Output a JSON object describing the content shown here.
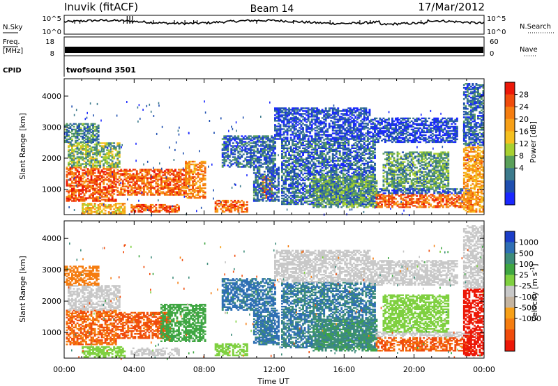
{
  "header": {
    "station": "Inuvik (fitACF)",
    "beam": "Beam 14",
    "date": "17/Mar/2012"
  },
  "panels": {
    "nsky": {
      "left_label": "N.Sky",
      "right_label": "N.Search",
      "left_ticks": [
        "10^5",
        "10^0"
      ],
      "right_ticks": [
        "10^5",
        "10^0"
      ]
    },
    "freq": {
      "left_label_1": "Freq.",
      "left_label_2": "[MHz]",
      "right_label": "Nave",
      "left_ticks": [
        "18",
        "8"
      ],
      "right_ticks": [
        "60",
        "0"
      ]
    },
    "cpid": {
      "label": "CPID",
      "value": "twofsound 3501"
    }
  },
  "chart_data": [
    {
      "type": "heatmap",
      "name": "power",
      "ylabel": "Slant Range [km]",
      "xlabel": "Time UT",
      "x_ticks": [
        "00:00",
        "04:00",
        "08:00",
        "12:00",
        "16:00",
        "20:00",
        "00:00"
      ],
      "xlim_hours": [
        0,
        24
      ],
      "y_ticks": [
        1000,
        2000,
        3000,
        4000
      ],
      "ylim": [
        180,
        4560
      ],
      "colorbar": {
        "label": "Power [dB]",
        "ticks": [
          "4",
          "8",
          "12",
          "16",
          "20",
          "24",
          "28"
        ],
        "colors": [
          "#1a28ff",
          "#1f4fb0",
          "#3c7a8c",
          "#5aa05a",
          "#a8d030",
          "#f5c020",
          "#f7a018",
          "#f57d10",
          "#f04c0c",
          "#ec1808"
        ]
      },
      "regions": [
        {
          "t0": 0.1,
          "t1": 3.0,
          "r0": 600,
          "r1": 1700,
          "v": 27
        },
        {
          "t0": 3.0,
          "t1": 6.9,
          "r0": 800,
          "r1": 1650,
          "v": 26
        },
        {
          "t0": 6.9,
          "t1": 8.0,
          "r0": 700,
          "r1": 1900,
          "v": 24
        },
        {
          "t0": 0.2,
          "t1": 3.2,
          "r0": 1700,
          "r1": 2500,
          "v": 14
        },
        {
          "t0": 0.0,
          "t1": 2.0,
          "r0": 2500,
          "r1": 3100,
          "v": 10
        },
        {
          "t0": 3.8,
          "t1": 6.5,
          "r0": 250,
          "r1": 500,
          "v": 27
        },
        {
          "t0": 1.0,
          "t1": 3.5,
          "r0": 200,
          "r1": 520,
          "v": 20
        },
        {
          "t0": 8.6,
          "t1": 10.4,
          "r0": 250,
          "r1": 650,
          "v": 26
        },
        {
          "t0": 11.2,
          "t1": 11.8,
          "r0": 700,
          "r1": 1400,
          "v": 26
        },
        {
          "t0": 10.8,
          "t1": 12.2,
          "r0": 600,
          "r1": 1700,
          "v": 8
        },
        {
          "t0": 9.0,
          "t1": 12.0,
          "r0": 1700,
          "r1": 2700,
          "v": 8
        },
        {
          "t0": 12.4,
          "t1": 17.8,
          "r0": 500,
          "r1": 2600,
          "v": 8
        },
        {
          "t0": 14.2,
          "t1": 17.9,
          "r0": 400,
          "r1": 1400,
          "v": 12
        },
        {
          "t0": 12.0,
          "t1": 17.5,
          "r0": 2600,
          "r1": 3600,
          "v": 6
        },
        {
          "t0": 17.8,
          "t1": 23.3,
          "r0": 400,
          "r1": 850,
          "v": 26
        },
        {
          "t0": 17.8,
          "t1": 23.3,
          "r0": 850,
          "r1": 1000,
          "v": 7
        },
        {
          "t0": 18.2,
          "t1": 22.0,
          "r0": 1000,
          "r1": 2200,
          "v": 12
        },
        {
          "t0": 17.5,
          "t1": 22.5,
          "r0": 2500,
          "r1": 3300,
          "v": 5
        },
        {
          "t0": 22.8,
          "t1": 24.0,
          "r0": 250,
          "r1": 2400,
          "v": 22
        },
        {
          "t0": 22.8,
          "t1": 24.0,
          "r0": 2400,
          "r1": 4400,
          "v": 8
        }
      ]
    },
    {
      "type": "heatmap",
      "name": "velocity",
      "ylabel": "Slant Range [km]",
      "xlabel": "Time UT",
      "x_ticks": [
        "00:00",
        "04:00",
        "08:00",
        "12:00",
        "16:00",
        "20:00",
        "00:00"
      ],
      "xlim_hours": [
        0,
        24
      ],
      "y_ticks": [
        1000,
        2000,
        3000,
        4000
      ],
      "ylim": [
        180,
        4560
      ],
      "colorbar": {
        "label": "Velocity [m s^-1]",
        "ticks": [
          "1000",
          "500",
          "100",
          "25",
          "-25",
          "-100",
          "-500",
          "-1000"
        ],
        "colors": [
          "#1c3ec8",
          "#2f6fb4",
          "#3d8c7a",
          "#3fa642",
          "#7fd040",
          "#c8c8c8",
          "#c4b4a0",
          "#f7a018",
          "#f57d10",
          "#f04c0c",
          "#ec1808"
        ]
      },
      "regions": [
        {
          "t0": 0.1,
          "t1": 3.0,
          "r0": 600,
          "r1": 1700,
          "v": -250
        },
        {
          "t0": 3.0,
          "t1": 6.0,
          "r0": 800,
          "r1": 1650,
          "v": -300
        },
        {
          "t0": 5.5,
          "t1": 8.0,
          "r0": 700,
          "r1": 1900,
          "v": 150
        },
        {
          "t0": 0.2,
          "t1": 3.2,
          "r0": 1700,
          "r1": 2500,
          "v": -5
        },
        {
          "t0": 0.0,
          "t1": 2.0,
          "r0": 2500,
          "r1": 3100,
          "v": -150
        },
        {
          "t0": 3.8,
          "t1": 6.5,
          "r0": 250,
          "r1": 500,
          "v": -10
        },
        {
          "t0": 1.0,
          "t1": 3.5,
          "r0": 200,
          "r1": 520,
          "v": 60
        },
        {
          "t0": 8.6,
          "t1": 10.4,
          "r0": 250,
          "r1": 650,
          "v": 60
        },
        {
          "t0": 11.2,
          "t1": 11.8,
          "r0": 700,
          "r1": 1400,
          "v": 400
        },
        {
          "t0": 10.8,
          "t1": 12.2,
          "r0": 600,
          "r1": 1700,
          "v": 600
        },
        {
          "t0": 9.0,
          "t1": 12.0,
          "r0": 1700,
          "r1": 2700,
          "v": 600
        },
        {
          "t0": 12.4,
          "t1": 17.8,
          "r0": 500,
          "r1": 2600,
          "v": 500
        },
        {
          "t0": 14.2,
          "t1": 17.9,
          "r0": 400,
          "r1": 1400,
          "v": 300
        },
        {
          "t0": 12.0,
          "t1": 17.5,
          "r0": 2600,
          "r1": 3600,
          "v": -5
        },
        {
          "t0": 17.8,
          "t1": 23.3,
          "r0": 400,
          "r1": 850,
          "v": -280
        },
        {
          "t0": 17.8,
          "t1": 23.3,
          "r0": 850,
          "r1": 1000,
          "v": -5
        },
        {
          "t0": 18.2,
          "t1": 22.0,
          "r0": 1000,
          "r1": 2200,
          "v": 60
        },
        {
          "t0": 17.5,
          "t1": 22.5,
          "r0": 2500,
          "r1": 3300,
          "v": -5
        },
        {
          "t0": 22.8,
          "t1": 24.0,
          "r0": 250,
          "r1": 2400,
          "v": -700
        },
        {
          "t0": 22.8,
          "t1": 24.0,
          "r0": 2400,
          "r1": 4400,
          "v": -5
        }
      ]
    }
  ]
}
